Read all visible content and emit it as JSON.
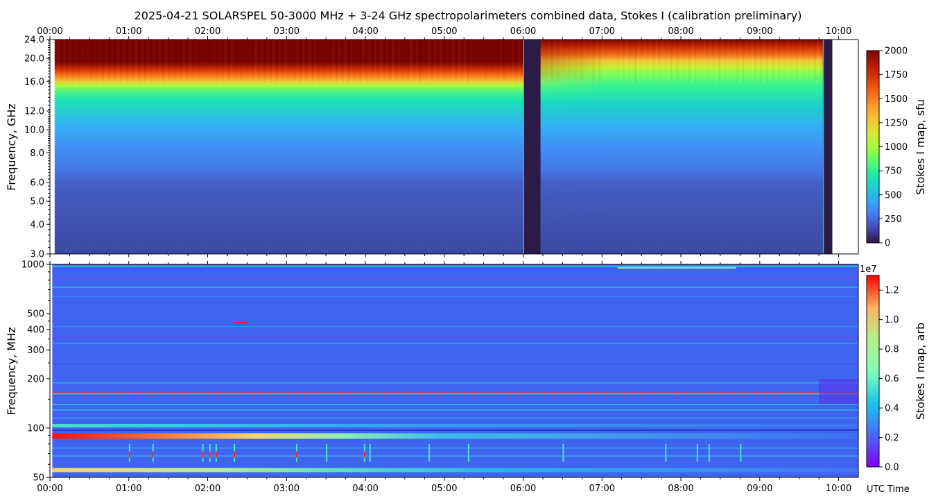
{
  "chart_data": [
    {
      "type": "heatmap",
      "title": "2025-04-21  SOLARSPEL  50-3000 MHz  +  3-24 GHz  spectropolarimeters combined data,  Stokes I  (calibration preliminary)",
      "ylabel": "Frequency, GHz",
      "x_ticks": [
        "00:00",
        "01:00",
        "02:00",
        "03:00",
        "04:00",
        "05:00",
        "06:00",
        "07:00",
        "08:00",
        "09:00",
        "10:00"
      ],
      "x_range_hours": [
        0,
        10.25
      ],
      "y_ticks": [
        "3.0",
        "4.0",
        "5.0",
        "6.0",
        "8.0",
        "10.0",
        "12.0",
        "16.0",
        "20.0",
        "24.0"
      ],
      "y_tick_values": [
        3,
        4,
        5,
        6,
        8,
        10,
        12,
        16,
        20,
        24
      ],
      "ylim": [
        3,
        24
      ],
      "y_scale": "log",
      "data_start_hours": 0.06,
      "data_end_hours": 9.92,
      "data_gaps_hours": [
        [
          6.0,
          6.22
        ],
        [
          9.8,
          9.92
        ]
      ],
      "colorbar": {
        "label": "Stokes I map, sfu",
        "ticks": [
          "0",
          "250",
          "500",
          "750",
          "1000",
          "1250",
          "1500",
          "1750",
          "2000"
        ],
        "range": [
          0,
          2000
        ],
        "colormap": "turbo"
      }
    },
    {
      "type": "heatmap",
      "ylabel": "Frequency, MHz",
      "xlabel": "UTC Time",
      "x_ticks": [
        "00:00",
        "01:00",
        "02:00",
        "03:00",
        "04:00",
        "05:00",
        "06:00",
        "07:00",
        "08:00",
        "09:00",
        "10:00"
      ],
      "x_range_hours": [
        0,
        10.25
      ],
      "y_ticks": [
        "50",
        "100",
        "200",
        "300",
        "400",
        "500",
        "1000"
      ],
      "y_tick_values": [
        50,
        100,
        200,
        300,
        400,
        500,
        1000
      ],
      "ylim": [
        50,
        1000
      ],
      "y_scale": "log",
      "data_start_hours": 0.03,
      "colorbar": {
        "label": "Stokes I map, arb",
        "multiplier": "1e7",
        "ticks": [
          "0.0",
          "0.2",
          "0.4",
          "0.6",
          "0.8",
          "1.0",
          "1.2"
        ],
        "range": [
          0,
          1.3
        ],
        "colormap": "rainbow"
      }
    }
  ]
}
